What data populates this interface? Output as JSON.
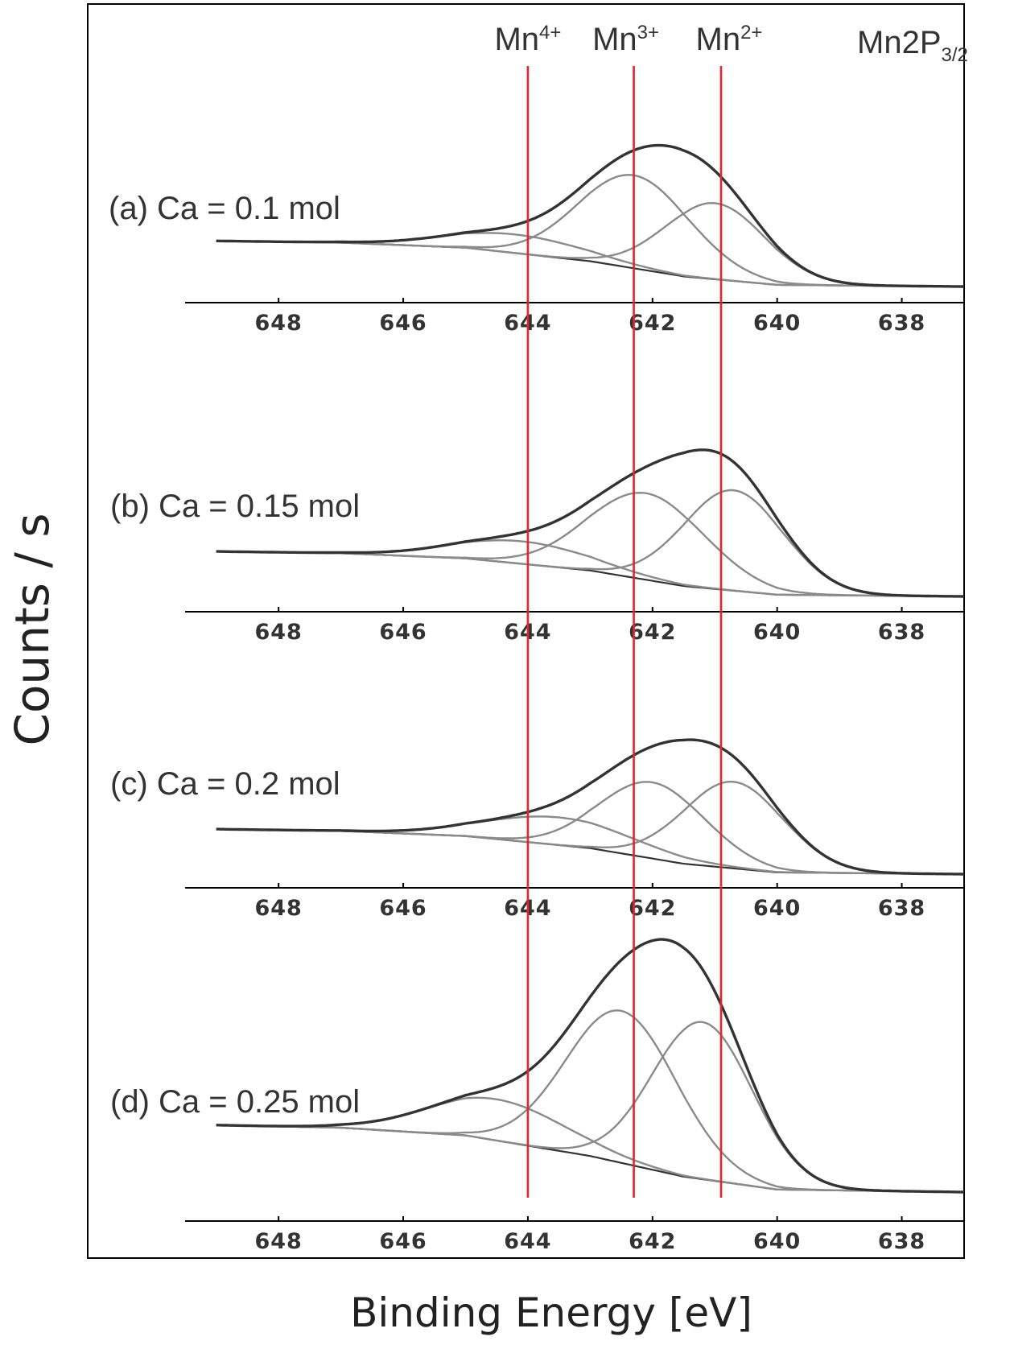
{
  "chart_data": {
    "type": "line",
    "title": "Mn2P3/2",
    "title_parts": {
      "main": "Mn2P",
      "sub": "3/2"
    },
    "xlabel": "Binding Energy [eV]",
    "ylabel": "Counts / s",
    "xlim": [
      649.5,
      637.0
    ],
    "x_reversed": true,
    "x_ticks": [
      "648",
      "646",
      "644",
      "642",
      "640",
      "638"
    ],
    "x_tick_values": [
      648,
      646,
      644,
      642,
      640,
      638
    ],
    "reference_lines": [
      {
        "x": 644.0,
        "label": "Mn",
        "sup": "4+",
        "color": "#e8232a"
      },
      {
        "x": 642.3,
        "label": "Mn",
        "sup": "3+",
        "color": "#e8232a"
      },
      {
        "x": 640.9,
        "label": "Mn",
        "sup": "2+",
        "color": "#e8232a"
      }
    ],
    "panels": [
      {
        "label": "(a) Ca = 0.1 mol",
        "background": [
          [
            649.0,
            0.27
          ],
          [
            647,
            0.26
          ],
          [
            645,
            0.23
          ],
          [
            643,
            0.15
          ],
          [
            641.5,
            0.06
          ],
          [
            640,
            0.01
          ],
          [
            637,
            0.0
          ]
        ],
        "components": [
          {
            "name": "Mn4+",
            "center": 644.2,
            "height": 0.11,
            "fwhm": 2.6
          },
          {
            "name": "Mn3+",
            "center": 642.3,
            "height": 0.55,
            "fwhm": 2.1
          },
          {
            "name": "Mn2+",
            "center": 641.0,
            "height": 0.45,
            "fwhm": 1.9
          }
        ]
      },
      {
        "label": "(b) Ca = 0.15 mol",
        "background": [
          [
            649.0,
            0.26
          ],
          [
            647,
            0.25
          ],
          [
            645,
            0.22
          ],
          [
            643,
            0.15
          ],
          [
            641.5,
            0.06
          ],
          [
            640,
            0.01
          ],
          [
            637,
            0.0
          ]
        ],
        "components": [
          {
            "name": "Mn4+",
            "center": 644.1,
            "height": 0.13,
            "fwhm": 2.6
          },
          {
            "name": "Mn3+",
            "center": 642.1,
            "height": 0.5,
            "fwhm": 2.2
          },
          {
            "name": "Mn2+",
            "center": 640.7,
            "height": 0.58,
            "fwhm": 1.9
          }
        ]
      },
      {
        "label": "(c) Ca = 0.2 mol",
        "background": [
          [
            649.0,
            0.26
          ],
          [
            647,
            0.25
          ],
          [
            645,
            0.22
          ],
          [
            643,
            0.15
          ],
          [
            641.5,
            0.06
          ],
          [
            640,
            0.01
          ],
          [
            637,
            0.0
          ]
        ],
        "components": [
          {
            "name": "Mn4+",
            "center": 643.5,
            "height": 0.16,
            "fwhm": 2.8
          },
          {
            "name": "Mn3+",
            "center": 642.0,
            "height": 0.44,
            "fwhm": 2.0
          },
          {
            "name": "Mn2+",
            "center": 640.7,
            "height": 0.5,
            "fwhm": 1.9
          }
        ]
      },
      {
        "label": "(d) Ca = 0.25 mol",
        "background": [
          [
            649.0,
            0.26
          ],
          [
            647,
            0.25
          ],
          [
            645,
            0.22
          ],
          [
            643,
            0.14
          ],
          [
            641.5,
            0.06
          ],
          [
            640,
            0.01
          ],
          [
            637,
            0.0
          ]
        ],
        "components": [
          {
            "name": "Mn4+",
            "center": 644.5,
            "height": 0.16,
            "fwhm": 2.6
          },
          {
            "name": "Mn3+",
            "center": 642.5,
            "height": 0.59,
            "fwhm": 2.1
          },
          {
            "name": "Mn2+",
            "center": 641.2,
            "height": 0.61,
            "fwhm": 1.9
          }
        ]
      }
    ]
  },
  "colors": {
    "reference_line": "#e8232a",
    "envelope": "#333333",
    "component": "#8a8a8a",
    "axis": "#000000",
    "frame": "#000000"
  }
}
